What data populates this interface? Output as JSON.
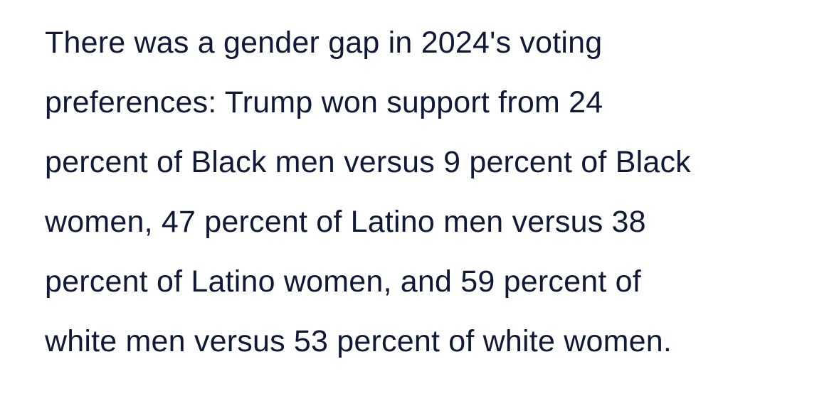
{
  "colors": {
    "background": "#ffffff",
    "text": "#111936"
  },
  "paragraph": {
    "full_text": "There was a gender gap in 2024's voting preferences: Trump won support from 24 percent of Black men versus 9 percent of Black women, 47 percent of Latino men versus 38 percent of Latino women, and 59 percent of white men versus 53 percent of white women.",
    "lines": [
      "There was a gender gap in 2024's voting",
      "preferences: Trump won support from 24",
      "percent of Black men versus 9 percent of Black",
      "women, 47 percent of Latino men versus 38",
      "percent of Latino women, and 59 percent of",
      "white men versus 53 percent of white women."
    ],
    "stats": {
      "black_men_trump_support_pct": 24,
      "black_women_trump_support_pct": 9,
      "latino_men_trump_support_pct": 47,
      "latino_women_trump_support_pct": 38,
      "white_men_trump_support_pct": 59,
      "white_women_trump_support_pct": 53,
      "election_year": "2024"
    }
  }
}
